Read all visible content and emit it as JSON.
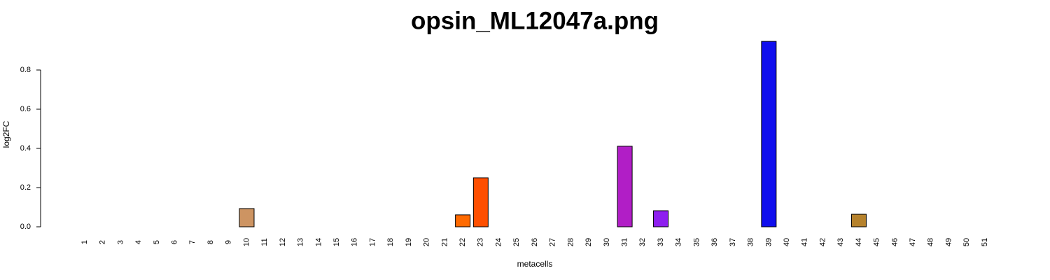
{
  "chart_data": {
    "type": "bar",
    "title": "opsin_ML12047a.png",
    "x_label": "metacells",
    "y_label": "log2FC",
    "categories": [
      "1",
      "2",
      "3",
      "4",
      "5",
      "6",
      "7",
      "8",
      "9",
      "10",
      "11",
      "12",
      "13",
      "14",
      "15",
      "16",
      "17",
      "18",
      "19",
      "20",
      "21",
      "22",
      "23",
      "24",
      "25",
      "26",
      "27",
      "28",
      "29",
      "30",
      "31",
      "32",
      "33",
      "34",
      "35",
      "36",
      "37",
      "38",
      "39",
      "40",
      "41",
      "42",
      "43",
      "44",
      "45",
      "46",
      "47",
      "48",
      "49",
      "50",
      "51"
    ],
    "values": [
      0,
      0,
      0,
      0,
      0,
      0,
      0,
      0,
      0,
      0.093,
      0,
      0,
      0,
      0,
      0,
      0,
      0,
      0,
      0,
      0,
      0,
      0.061,
      0.25,
      0,
      0,
      0,
      0,
      0,
      0,
      0,
      0.411,
      0,
      0.082,
      0,
      0,
      0,
      0,
      0,
      0.946,
      0,
      0,
      0,
      0,
      0.064,
      0,
      0,
      0,
      0,
      0,
      0,
      0
    ],
    "colors": [
      null,
      null,
      null,
      null,
      null,
      null,
      null,
      null,
      null,
      "#cd9462",
      null,
      null,
      null,
      null,
      null,
      null,
      null,
      null,
      null,
      null,
      null,
      "#ff6a00",
      "#ff4f00",
      null,
      null,
      null,
      null,
      null,
      null,
      null,
      "#b11ec6",
      null,
      "#8e1fef",
      null,
      null,
      null,
      null,
      null,
      "#100eee",
      null,
      null,
      null,
      null,
      "#b6822c",
      null,
      null,
      null,
      null,
      null,
      null,
      null
    ],
    "ylim": [
      0,
      0.95
    ],
    "yticks": [
      {
        "value": 0,
        "label": "0.0"
      },
      0.2,
      0.4,
      0.6,
      0.8
    ]
  }
}
